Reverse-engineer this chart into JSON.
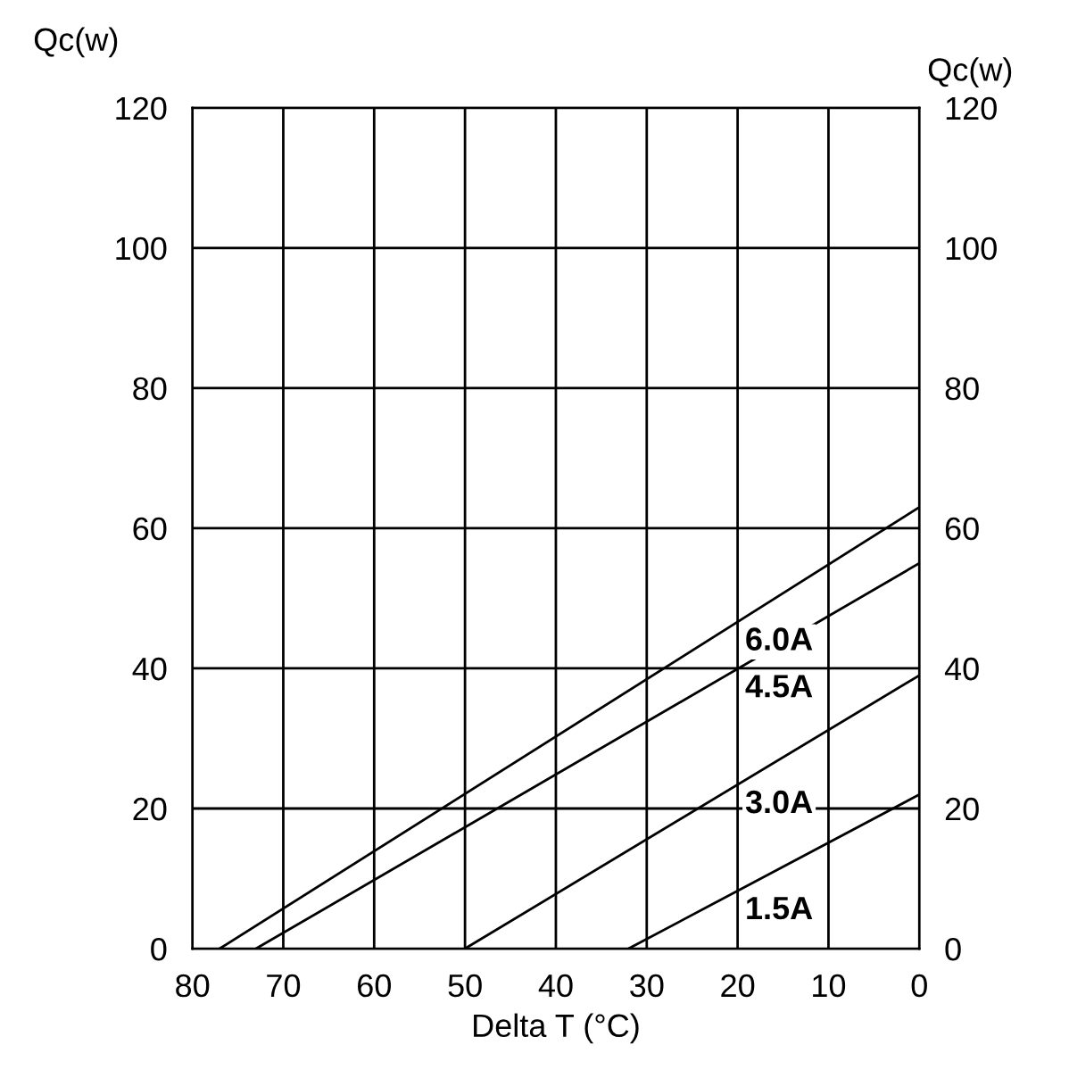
{
  "chart_data": {
    "type": "line",
    "xlabel": "Delta T (°C)",
    "ylabel": "Qc(w)",
    "y2label": "Qc(w)",
    "series": [
      {
        "name": "6.0A",
        "color": "#000000",
        "x": [
          77,
          0
        ],
        "values": [
          0,
          63
        ]
      },
      {
        "name": "4.5A",
        "color": "#000000",
        "x": [
          73,
          0
        ],
        "values": [
          0,
          55
        ]
      },
      {
        "name": "3.0A",
        "color": "#000000",
        "x": [
          50,
          0
        ],
        "values": [
          0,
          39
        ]
      },
      {
        "name": "1.5A",
        "color": "#000000",
        "x": [
          32,
          0
        ],
        "values": [
          0,
          22
        ]
      }
    ],
    "xlim": [
      80,
      0
    ],
    "xticks": [
      80,
      70,
      60,
      50,
      40,
      30,
      20,
      10,
      0
    ],
    "ylim": [
      0,
      120
    ],
    "yticks": [
      0,
      20,
      40,
      60,
      80,
      100,
      120
    ],
    "y2lim": [
      0,
      120
    ],
    "y2ticks": [
      0,
      20,
      40,
      60,
      80,
      100,
      120
    ],
    "grid": true,
    "legend": false,
    "marker": "none",
    "line_style": "solid"
  }
}
